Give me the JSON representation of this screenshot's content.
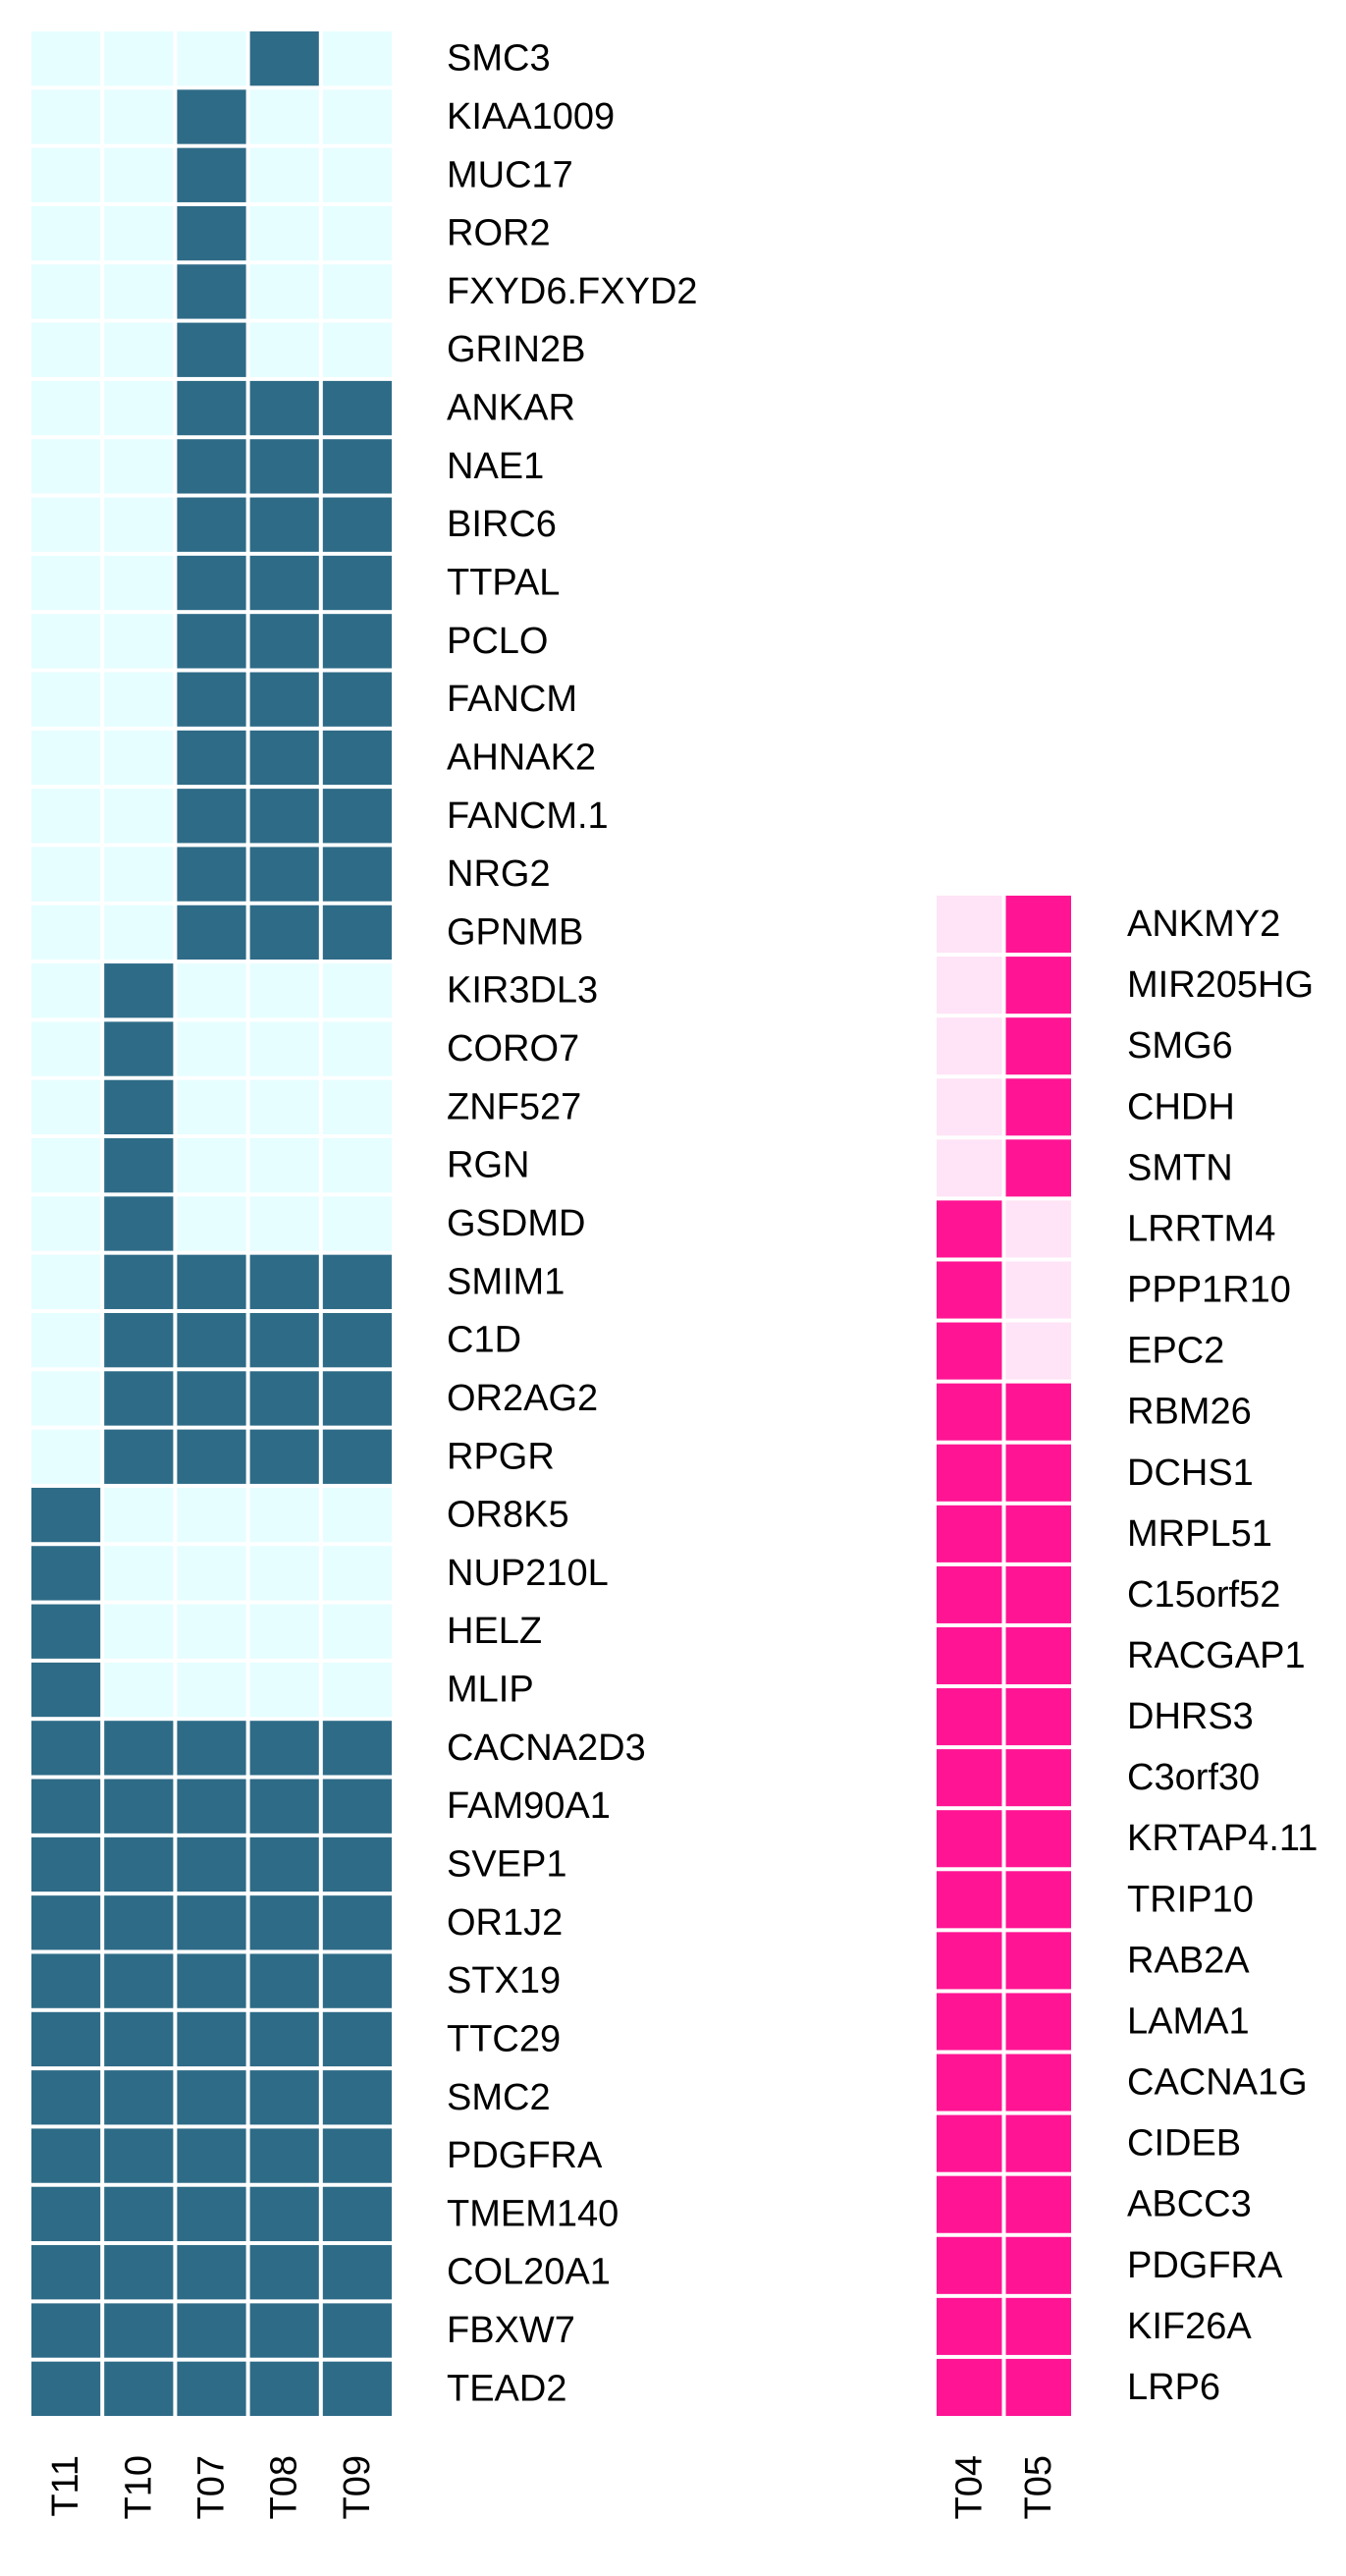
{
  "chart_data": [
    {
      "type": "heatmap",
      "columns": [
        "T11",
        "T10",
        "T07",
        "T08",
        "T09"
      ],
      "rows": [
        "SMC3",
        "KIAA1009",
        "MUC17",
        "ROR2",
        "FXYD6.FXYD2",
        "GRIN2B",
        "ANKAR",
        "NAE1",
        "BIRC6",
        "TTPAL",
        "PCLO",
        "FANCM",
        "AHNAK2",
        "FANCM.1",
        "NRG2",
        "GPNMB",
        "KIR3DL3",
        "CORO7",
        "ZNF527",
        "RGN",
        "GSDMD",
        "SMIM1",
        "C1D",
        "OR2AG2",
        "RPGR",
        "OR8K5",
        "NUP210L",
        "HELZ",
        "MLIP",
        "CACNA2D3",
        "FAM90A1",
        "SVEP1",
        "OR1J2",
        "STX19",
        "TTC29",
        "SMC2",
        "PDGFRA",
        "TMEM140",
        "COL20A1",
        "FBXW7",
        "TEAD2"
      ],
      "values": [
        [
          0,
          0,
          0,
          1,
          0
        ],
        [
          0,
          0,
          1,
          0,
          0
        ],
        [
          0,
          0,
          1,
          0,
          0
        ],
        [
          0,
          0,
          1,
          0,
          0
        ],
        [
          0,
          0,
          1,
          0,
          0
        ],
        [
          0,
          0,
          1,
          0,
          0
        ],
        [
          0,
          0,
          1,
          1,
          1
        ],
        [
          0,
          0,
          1,
          1,
          1
        ],
        [
          0,
          0,
          1,
          1,
          1
        ],
        [
          0,
          0,
          1,
          1,
          1
        ],
        [
          0,
          0,
          1,
          1,
          1
        ],
        [
          0,
          0,
          1,
          1,
          1
        ],
        [
          0,
          0,
          1,
          1,
          1
        ],
        [
          0,
          0,
          1,
          1,
          1
        ],
        [
          0,
          0,
          1,
          1,
          1
        ],
        [
          0,
          0,
          1,
          1,
          1
        ],
        [
          0,
          1,
          0,
          0,
          0
        ],
        [
          0,
          1,
          0,
          0,
          0
        ],
        [
          0,
          1,
          0,
          0,
          0
        ],
        [
          0,
          1,
          0,
          0,
          0
        ],
        [
          0,
          1,
          0,
          0,
          0
        ],
        [
          0,
          1,
          1,
          1,
          1
        ],
        [
          0,
          1,
          1,
          1,
          1
        ],
        [
          0,
          1,
          1,
          1,
          1
        ],
        [
          0,
          1,
          1,
          1,
          1
        ],
        [
          1,
          0,
          0,
          0,
          0
        ],
        [
          1,
          0,
          0,
          0,
          0
        ],
        [
          1,
          0,
          0,
          0,
          0
        ],
        [
          1,
          0,
          0,
          0,
          0
        ],
        [
          1,
          1,
          1,
          1,
          1
        ],
        [
          1,
          1,
          1,
          1,
          1
        ],
        [
          1,
          1,
          1,
          1,
          1
        ],
        [
          1,
          1,
          1,
          1,
          1
        ],
        [
          1,
          1,
          1,
          1,
          1
        ],
        [
          1,
          1,
          1,
          1,
          1
        ],
        [
          1,
          1,
          1,
          1,
          1
        ],
        [
          1,
          1,
          1,
          1,
          1
        ],
        [
          1,
          1,
          1,
          1,
          1
        ],
        [
          1,
          1,
          1,
          1,
          1
        ],
        [
          1,
          1,
          1,
          1,
          1
        ],
        [
          1,
          1,
          1,
          1,
          1
        ]
      ],
      "colors": {
        "on": "#2e6b87",
        "off": "#e6feff"
      }
    },
    {
      "type": "heatmap",
      "columns": [
        "T04",
        "T05"
      ],
      "rows": [
        "ANKMY2",
        "MIR205HG",
        "SMG6",
        "CHDH",
        "SMTN",
        "LRRTM4",
        "PPP1R10",
        "EPC2",
        "RBM26",
        "DCHS1",
        "MRPL51",
        "C15orf52",
        "RACGAP1",
        "DHRS3",
        "C3orf30",
        "KRTAP4.11",
        "TRIP10",
        "RAB2A",
        "LAMA1",
        "CACNA1G",
        "CIDEB",
        "ABCC3",
        "PDGFRA",
        "KIF26A",
        "LRP6"
      ],
      "values": [
        [
          0,
          1
        ],
        [
          0,
          1
        ],
        [
          0,
          1
        ],
        [
          0,
          1
        ],
        [
          0,
          1
        ],
        [
          1,
          0
        ],
        [
          1,
          0
        ],
        [
          1,
          0
        ],
        [
          1,
          1
        ],
        [
          1,
          1
        ],
        [
          1,
          1
        ],
        [
          1,
          1
        ],
        [
          1,
          1
        ],
        [
          1,
          1
        ],
        [
          1,
          1
        ],
        [
          1,
          1
        ],
        [
          1,
          1
        ],
        [
          1,
          1
        ],
        [
          1,
          1
        ],
        [
          1,
          1
        ],
        [
          1,
          1
        ],
        [
          1,
          1
        ],
        [
          1,
          1
        ],
        [
          1,
          1
        ],
        [
          1,
          1
        ]
      ],
      "colors": {
        "on": "#ff1493",
        "off": "#ffe3f6"
      }
    }
  ]
}
